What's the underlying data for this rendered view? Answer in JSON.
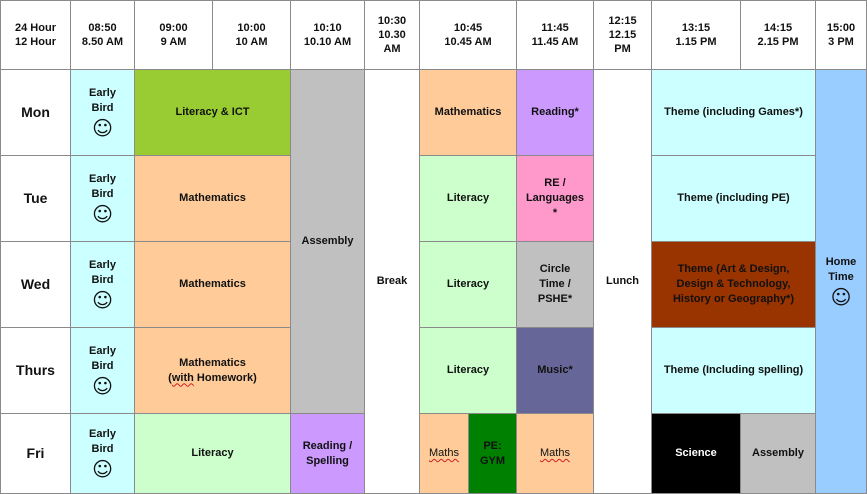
{
  "header": {
    "label_24": "24 Hour",
    "label_12": "12 Hour",
    "times": [
      {
        "t24": "08:50",
        "t12": "8.50 AM"
      },
      {
        "t24": "09:00",
        "t12": "9 AM"
      },
      {
        "t24": "10:00",
        "t12": "10 AM"
      },
      {
        "t24": "10:10",
        "t12": "10.10 AM"
      },
      {
        "t24": "10:30",
        "t12": "10.30 AM"
      },
      {
        "t24": "10:45",
        "t12": "10.45 AM"
      },
      {
        "t24": "11:45",
        "t12": "11.45 AM"
      },
      {
        "t24": "12:15",
        "t12": "12.15 PM"
      },
      {
        "t24": "13:15",
        "t12": "1.15 PM"
      },
      {
        "t24": "14:15",
        "t12": "2.15 PM"
      },
      {
        "t24": "15:00",
        "t12": "3 PM"
      }
    ]
  },
  "days": [
    "Mon",
    "Tue",
    "Wed",
    "Thurs",
    "Fri"
  ],
  "early_bird": {
    "label_1": "Early",
    "label_2": "Bird",
    "smile": "☺"
  },
  "spans": {
    "assembly": "Assembly",
    "break": "Break",
    "lunch": "Lunch",
    "home_time_1": "Home",
    "home_time_2": "Time",
    "smile": "☺"
  },
  "mon": {
    "literacy_ict": "Literacy & ICT",
    "mathematics": "Mathematics",
    "reading": "Reading*",
    "theme": "Theme (including Games*)"
  },
  "tue": {
    "mathematics": "Mathematics",
    "literacy": "Literacy",
    "re_1": "RE /",
    "re_2": "Languages",
    "re_3": "*",
    "theme": "Theme (including PE)"
  },
  "wed": {
    "mathematics": "Mathematics",
    "literacy": "Literacy",
    "circle_1": "Circle",
    "circle_2": "Time /",
    "circle_3": "PSHE*",
    "theme_1": "Theme (Art & Design,",
    "theme_2": "Design & Technology,",
    "theme_3": "History or Geography*)"
  },
  "thu": {
    "maths_1": "Mathematics",
    "maths_2a": "(",
    "maths_2b": "with",
    "maths_2c": " Homework)",
    "literacy": "Literacy",
    "music": "Music*",
    "theme": "Theme (Including spelling)"
  },
  "fri": {
    "literacy": "Literacy",
    "reading_1": "Reading /",
    "reading_2": "Spelling",
    "maths_a": "Maths",
    "pe_1": "PE:",
    "pe_2": "GYM",
    "maths_b": "Maths",
    "science": "Science",
    "assembly": "Assembly"
  },
  "colors": {
    "early_bird": "#ccffff",
    "literacy_ict": "#99cc33",
    "mathematics": "#ffcc99",
    "assembly": "#c0c0c0",
    "reading": "#cc99ff",
    "theme": "#ccffff",
    "literacy": "#ccffcc",
    "re_languages": "#ff99cc",
    "circle_time": "#c0c0c0",
    "theme_art": "#993300",
    "music": "#666699",
    "pe_gym": "#008000",
    "science": "#000000",
    "home_time": "#99ccff"
  }
}
